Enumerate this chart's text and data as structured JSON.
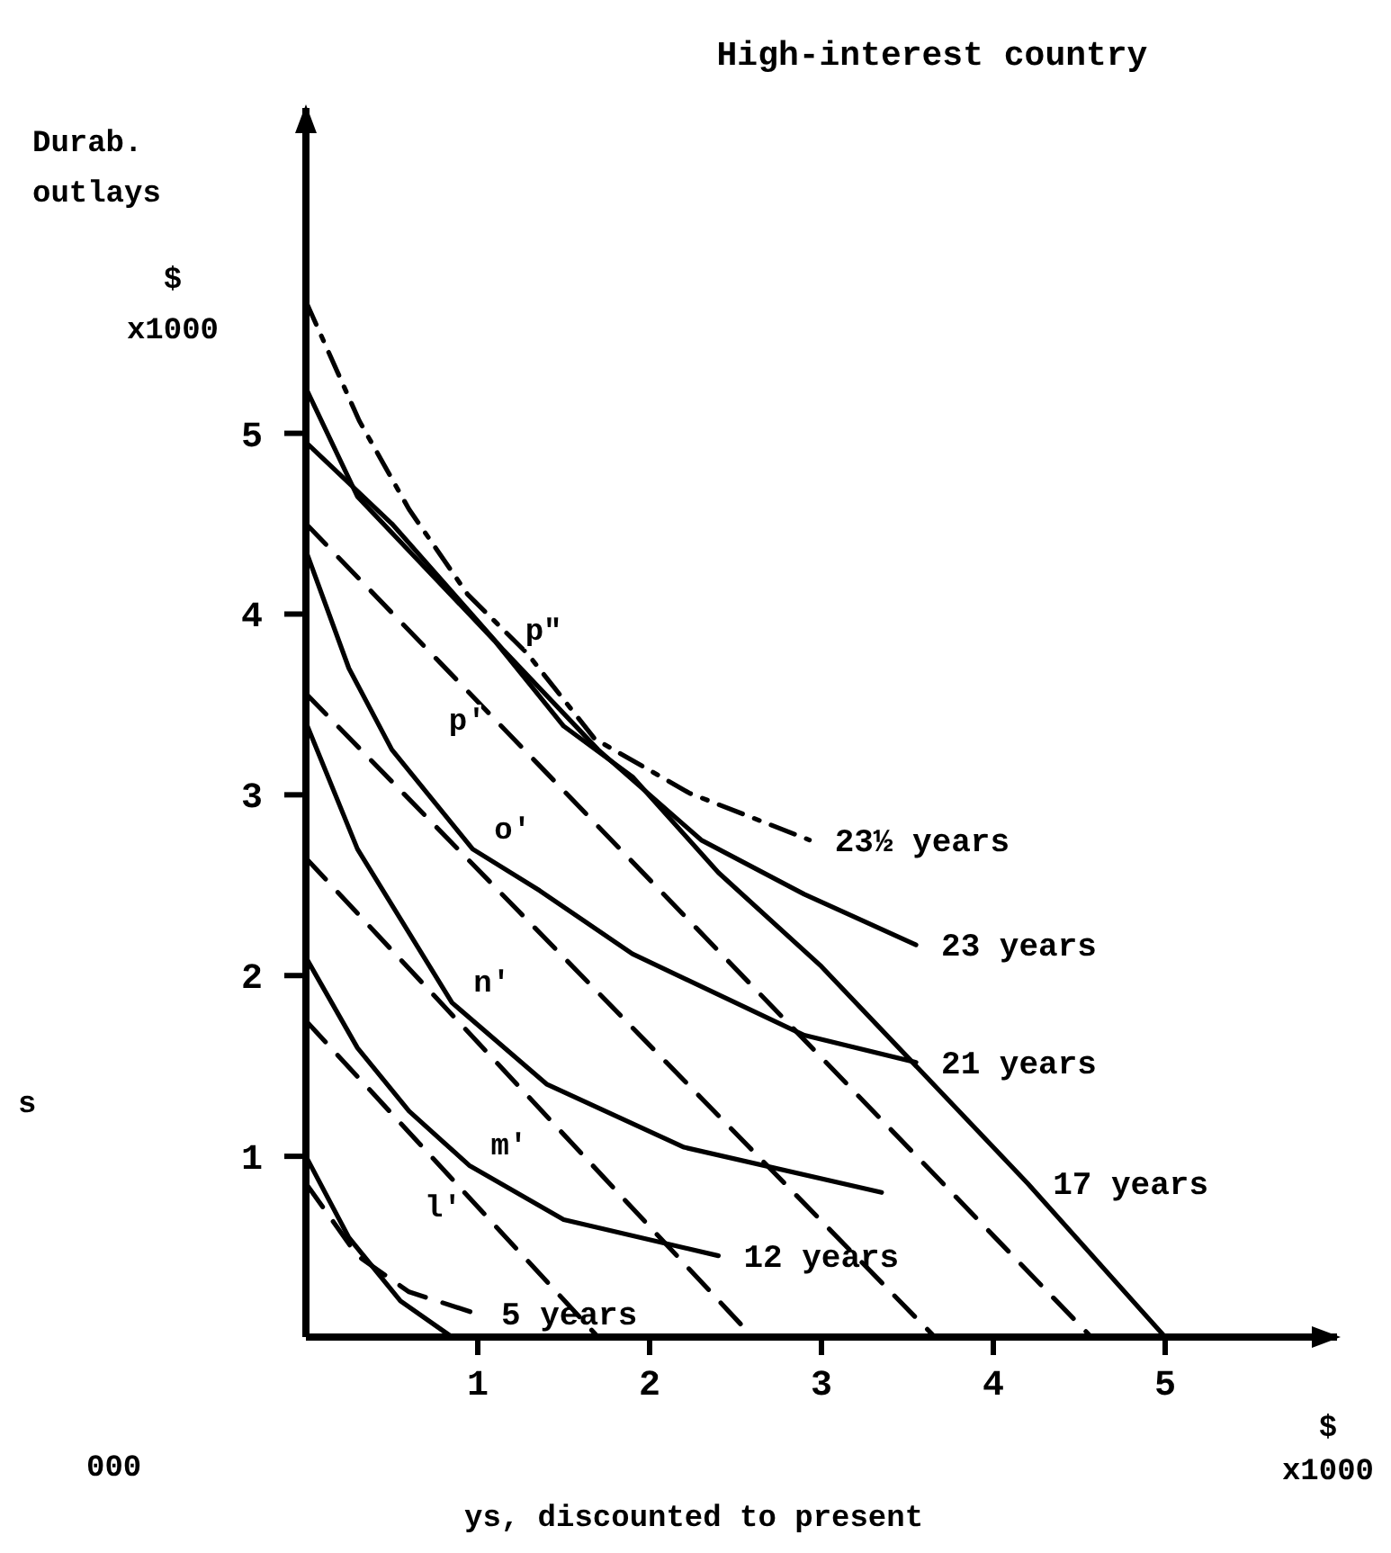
{
  "chart_data": {
    "type": "line",
    "title": "High-interest country",
    "ylabel": "Durab.\noutlays\n$\nx1000",
    "xlabel": "$\nx1000",
    "xlim": [
      0,
      6.0
    ],
    "ylim": [
      0,
      6.8
    ],
    "xticks": [
      1,
      2,
      3,
      4,
      5
    ],
    "yticks": [
      1,
      2,
      3,
      4,
      5
    ],
    "grid": false,
    "marker": "none",
    "series": [
      {
        "name": "23½ years",
        "line_style": "dashdot",
        "x": [
          0,
          0.31,
          0.6,
          0.94,
          1.29,
          1.68,
          2.23,
          2.93
        ],
        "values": [
          5.73,
          5.07,
          4.58,
          4.11,
          3.78,
          3.31,
          3.01,
          2.75
        ]
      },
      {
        "name": "23 years",
        "line_style": "solid",
        "x": [
          0,
          0.5,
          1.15,
          1.7,
          2.3,
          2.9,
          3.55
        ],
        "values": [
          4.95,
          4.5,
          3.8,
          3.25,
          2.75,
          2.45,
          2.17
        ]
      },
      {
        "name": "21 years",
        "line_style": "solid",
        "x": [
          0,
          0.25,
          0.5,
          0.97,
          1.36,
          1.9,
          2.9,
          3.55
        ],
        "values": [
          4.35,
          3.7,
          3.25,
          2.7,
          2.47,
          2.12,
          1.67,
          1.52
        ]
      },
      {
        "name": "17 years",
        "line_style": "solid",
        "x": [
          0,
          0.3,
          0.65,
          1.1,
          1.5,
          1.9,
          2.4,
          3,
          3.5,
          4.2,
          5
        ],
        "values": [
          5.25,
          4.65,
          4.3,
          3.85,
          3.38,
          3.1,
          2.57,
          2.05,
          1.55,
          0.85,
          0
        ]
      },
      {
        "line_style": "solid",
        "x": [
          0,
          0.3,
          0.85,
          1.4,
          2.2,
          3.35
        ],
        "values": [
          3.4,
          2.7,
          1.85,
          1.4,
          1.05,
          0.8
        ]
      },
      {
        "name": "12 years",
        "line_style": "solid",
        "x": [
          0,
          0.3,
          0.6,
          0.95,
          1.5,
          2.4
        ],
        "values": [
          2.1,
          1.6,
          1.25,
          0.95,
          0.65,
          0.45
        ]
      },
      {
        "name": "5 years",
        "line_style": "dashed",
        "x": [
          0,
          0.3,
          0.6,
          0.99
        ],
        "values": [
          0.85,
          0.45,
          0.25,
          0.13
        ]
      },
      {
        "line_style": "solid",
        "x": [
          0,
          0.25,
          0.55,
          0.85
        ],
        "values": [
          1.0,
          0.55,
          0.2,
          0
        ]
      },
      {
        "line_style": "dashed",
        "x": [
          0,
          4.57
        ],
        "values": [
          4.5,
          0
        ]
      },
      {
        "line_style": "dashed",
        "x": [
          0,
          3.66
        ],
        "values": [
          3.56,
          0
        ]
      },
      {
        "line_style": "dashed",
        "x": [
          0,
          2.6
        ],
        "values": [
          2.65,
          0
        ]
      },
      {
        "line_style": "dashed",
        "x": [
          0,
          1.7
        ],
        "values": [
          1.75,
          0
        ]
      }
    ],
    "annotations": [
      {
        "text": "p\"",
        "x": 1.15,
        "y": 3.8
      },
      {
        "text": "p'",
        "x": 1.15,
        "y": 3.44
      },
      {
        "text": "o'",
        "x": 0.97,
        "y": 2.7
      },
      {
        "text": "n'",
        "x": 0.85,
        "y": 1.85
      },
      {
        "text": "m'",
        "x": 0.95,
        "y": 0.95
      },
      "l'",
      "ys, discounted to present",
      "000",
      "s"
    ]
  }
}
